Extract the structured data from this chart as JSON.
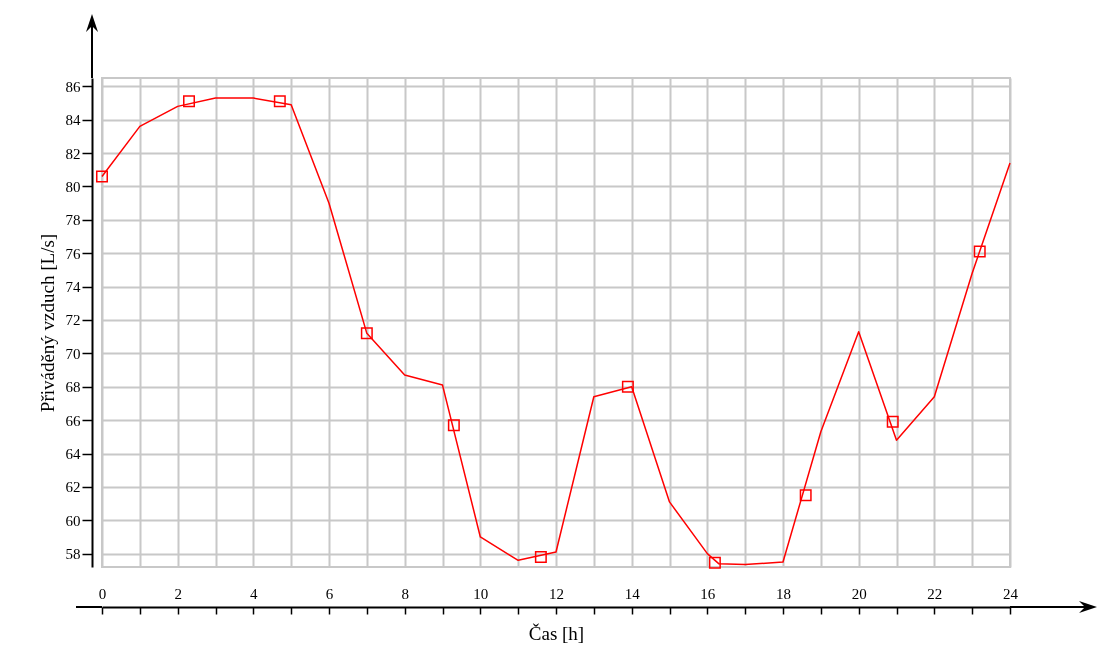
{
  "chart_data": {
    "type": "line",
    "xlabel": "Čas [h]",
    "ylabel": "Přiváděný vzduch [L/s]",
    "xlim": [
      0,
      24
    ],
    "ylim": [
      57.2,
      86.5
    ],
    "xticks": [
      0,
      {
        "value": 1,
        "label": null
      },
      2,
      {
        "value": 3,
        "label": null
      },
      4,
      {
        "value": 5,
        "label": null
      },
      6,
      {
        "value": 7,
        "label": null
      },
      8,
      {
        "value": 9,
        "label": null
      },
      10,
      {
        "value": 11,
        "label": null
      },
      12,
      {
        "value": 13,
        "label": null
      },
      14,
      {
        "value": 15,
        "label": null
      },
      16,
      {
        "value": 17,
        "label": null
      },
      18,
      {
        "value": 19,
        "label": null
      },
      20,
      {
        "value": 21,
        "label": null
      },
      22,
      {
        "value": 23,
        "label": null
      },
      24
    ],
    "yticks": [
      58,
      60,
      62,
      64,
      66,
      68,
      70,
      72,
      74,
      76,
      78,
      80,
      82,
      84,
      86
    ],
    "grid": true,
    "series": [
      {
        "type": "line",
        "color": "#ff0000",
        "marker": "none",
        "x": [
          0,
          1,
          2,
          3,
          4,
          5,
          6,
          7,
          8,
          9,
          10,
          11,
          12,
          13,
          14,
          15,
          16,
          16.3,
          17,
          18,
          19,
          20,
          21,
          22,
          23,
          24
        ],
        "values": [
          80.6,
          83.6,
          84.8,
          85.3,
          85.3,
          84.9,
          79.0,
          71.2,
          68.7,
          68.1,
          59.0,
          57.6,
          58.1,
          67.4,
          68.0,
          61.1,
          58.0,
          57.4,
          57.35,
          57.5,
          65.3,
          71.3,
          64.8,
          67.4,
          74.8,
          81.4
        ]
      },
      {
        "type": "scatter",
        "color": "#ff0000",
        "marker": "square",
        "x": [
          0,
          2.3,
          4.7,
          7,
          9.3,
          11.6,
          13.9,
          16.2,
          18.6,
          20.9,
          23.2
        ],
        "values": [
          80.6,
          85.1,
          85.1,
          71.2,
          65.7,
          57.8,
          68.0,
          57.45,
          61.5,
          65.9,
          76.1
        ]
      }
    ]
  }
}
